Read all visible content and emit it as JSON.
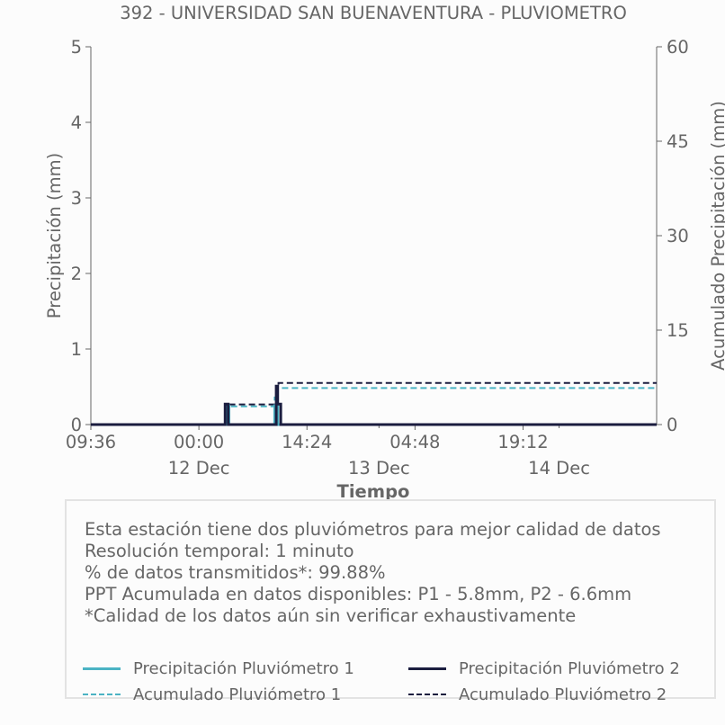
{
  "chart_data": {
    "type": "line",
    "title": "392 - UNIVERSIDAD SAN BUENAVENTURA - PLUVIOMETRO",
    "xlabel": "Tiempo",
    "ylabel": "Precipitación (mm)",
    "y2label": "Acumulado Precipitación (mm)",
    "x_range_hours": [
      0,
      75.4
    ],
    "ylim": [
      0,
      5
    ],
    "y2lim": [
      0,
      60
    ],
    "yticks": [
      "0",
      "1",
      "2",
      "3",
      "4",
      "5"
    ],
    "y2ticks": [
      "0",
      "15",
      "30",
      "45",
      "60"
    ],
    "xticks": [
      {
        "label": "09:36",
        "hour": 0
      },
      {
        "label": "00:00",
        "hour": 14.4
      },
      {
        "label": "14:24",
        "hour": 28.8
      },
      {
        "label": "04:48",
        "hour": 43.2
      },
      {
        "label": "19:12",
        "hour": 57.6
      }
    ],
    "date_labels": [
      {
        "label": "12 Dec",
        "hour": 14.4
      },
      {
        "label": "13 Dec",
        "hour": 38.4
      },
      {
        "label": "14 Dec",
        "hour": 62.4
      }
    ],
    "minor_tick_hours": [
      38.4,
      62.4
    ],
    "grid": false,
    "series": [
      {
        "name": "Precipitación Pluviómetro 1",
        "axis": "left",
        "color": "#4bb3c4",
        "style": "solid",
        "points": [
          [
            0,
            0
          ],
          [
            18.1,
            0
          ],
          [
            18.1,
            0.25
          ],
          [
            18.4,
            0.25
          ],
          [
            18.4,
            0
          ],
          [
            24.5,
            0
          ],
          [
            24.5,
            0.25
          ],
          [
            24.9,
            0.25
          ],
          [
            24.9,
            0
          ],
          [
            75.4,
            0
          ]
        ]
      },
      {
        "name": "Precipitación Pluviómetro 2",
        "axis": "left",
        "color": "#1b1d3f",
        "style": "solid",
        "points": [
          [
            0,
            0
          ],
          [
            17.9,
            0
          ],
          [
            17.9,
            0.27
          ],
          [
            18.3,
            0.27
          ],
          [
            18.3,
            0
          ],
          [
            24.7,
            0
          ],
          [
            24.7,
            0.51
          ],
          [
            24.9,
            0.51
          ],
          [
            24.9,
            0.27
          ],
          [
            25.3,
            0.27
          ],
          [
            25.3,
            0
          ],
          [
            75.4,
            0
          ]
        ]
      },
      {
        "name": "Acumulado Pluviómetro 1",
        "axis": "right",
        "color": "#4bb3c4",
        "style": "dashed",
        "points": [
          [
            0,
            0
          ],
          [
            18.1,
            0
          ],
          [
            18.1,
            2.9
          ],
          [
            24.5,
            2.9
          ],
          [
            24.5,
            4.3
          ],
          [
            24.9,
            4.3
          ],
          [
            24.9,
            5.8
          ],
          [
            75.4,
            5.8
          ]
        ]
      },
      {
        "name": "Acumulado Pluviómetro 2",
        "axis": "right",
        "color": "#1b1d3f",
        "style": "dashed",
        "points": [
          [
            0,
            0
          ],
          [
            17.9,
            0
          ],
          [
            17.9,
            3.2
          ],
          [
            24.7,
            3.2
          ],
          [
            24.7,
            6.3
          ],
          [
            25.0,
            6.3
          ],
          [
            25.0,
            6.6
          ],
          [
            75.4,
            6.6
          ]
        ]
      }
    ]
  },
  "info": {
    "lines": [
      "Esta estación tiene dos pluviómetros para mejor calidad de datos",
      "Resolución temporal: 1 minuto",
      "% de datos transmitidos*: 99.88%",
      "PPT Acumulada en datos disponibles: P1 - 5.8mm, P2 - 6.6mm",
      "*Calidad de los datos aún sin verificar exhaustivamente"
    ]
  },
  "legend": [
    {
      "label": "Precipitación Pluviómetro 1",
      "color": "#4bb3c4",
      "style": "solid"
    },
    {
      "label": "Precipitación Pluviómetro 2",
      "color": "#1b1d3f",
      "style": "solid"
    },
    {
      "label": "Acumulado Pluviómetro 1",
      "color": "#4bb3c4",
      "style": "dashed"
    },
    {
      "label": "Acumulado Pluviómetro 2",
      "color": "#1b1d3f",
      "style": "dashed"
    }
  ]
}
